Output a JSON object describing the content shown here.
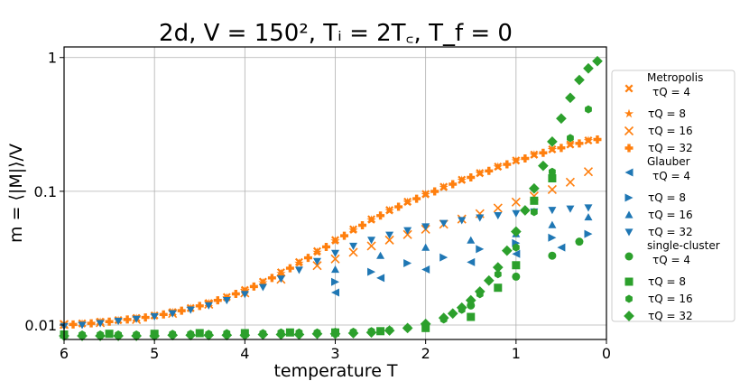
{
  "chart_data": {
    "type": "scatter",
    "title": "2d, V = 150², Tᵢ = 2T꜀, T_f = 0",
    "xlabel": "temperature T",
    "ylabel": "m = ⟨|M|⟩/V",
    "xlim": [
      6,
      0
    ],
    "ylim": [
      0.0078,
      1.2
    ],
    "yscale": "log",
    "xticks": [
      6,
      5,
      4,
      3,
      2,
      1,
      0
    ],
    "yticks": [
      {
        "value": 0.01,
        "label": "0.01"
      },
      {
        "value": 0.1,
        "label": "0.1"
      },
      {
        "value": 1,
        "label": "1"
      }
    ],
    "grid": true,
    "legend_position": "outside-right",
    "groups": [
      {
        "name": "Metropolis",
        "color": "#ff7f0e"
      },
      {
        "name": "Glauber",
        "color": "#1f77b4"
      },
      {
        "name": "single-cluster",
        "color": "#2ca02c"
      }
    ],
    "series": [
      {
        "group": "Metropolis",
        "label": "τQ = 4",
        "marker": "X",
        "color": "#ff7f0e",
        "x": [
          6.0,
          5.8,
          5.6,
          5.4,
          5.2,
          5.0,
          4.8,
          4.6,
          4.4,
          4.2,
          4.0,
          3.8,
          3.6,
          3.4,
          3.2,
          3.0,
          2.8,
          2.6,
          2.4,
          2.2,
          2.0,
          1.8,
          1.6,
          1.4,
          1.2,
          1.0,
          0.8,
          0.6,
          0.4,
          0.2
        ],
        "y": [
          0.0101,
          0.0103,
          0.0106,
          0.0109,
          0.0113,
          0.0118,
          0.0125,
          0.0134,
          0.0146,
          0.0162,
          0.0183,
          0.0211,
          0.0248,
          0.0296,
          0.0357,
          0.0432,
          0.052,
          0.0618,
          0.0724,
          0.0837,
          0.0955,
          0.108,
          0.122,
          0.137,
          0.153,
          0.17,
          0.188,
          0.206,
          0.224,
          0.24
        ]
      },
      {
        "group": "Metropolis",
        "label": "τQ = 8",
        "marker": "*",
        "color": "#ff7f0e",
        "x": [
          6.0,
          5.8,
          5.6,
          5.4,
          5.2,
          5.0,
          4.8,
          4.6,
          4.4,
          4.2,
          4.0,
          3.8,
          3.6,
          3.4,
          3.2,
          3.0,
          2.8,
          2.6,
          2.4,
          2.2,
          2.0,
          1.8,
          1.6,
          1.4,
          1.2,
          1.0,
          0.8,
          0.6,
          0.4,
          0.2
        ],
        "y": [
          0.01,
          0.0102,
          0.0105,
          0.0108,
          0.0112,
          0.0117,
          0.0124,
          0.0133,
          0.0145,
          0.016,
          0.018,
          0.0207,
          0.0243,
          0.029,
          0.035,
          0.0425,
          0.0512,
          0.061,
          0.0716,
          0.0828,
          0.0945,
          0.107,
          0.121,
          0.136,
          0.152,
          0.169,
          0.187,
          0.205,
          0.223,
          0.239
        ]
      },
      {
        "group": "Metropolis",
        "label": "τQ = 16",
        "marker": "x",
        "color": "#ff7f0e",
        "x": [
          6.0,
          5.6,
          5.2,
          4.8,
          4.4,
          4.0,
          3.6,
          3.2,
          3.0,
          2.8,
          2.6,
          2.4,
          2.2,
          2.0,
          1.8,
          1.6,
          1.4,
          1.2,
          1.0,
          0.8,
          0.6,
          0.4,
          0.2
        ],
        "y": [
          0.0101,
          0.0104,
          0.011,
          0.0122,
          0.0143,
          0.0174,
          0.022,
          0.0278,
          0.0312,
          0.035,
          0.039,
          0.0432,
          0.0475,
          0.052,
          0.0568,
          0.062,
          0.068,
          0.075,
          0.083,
          0.092,
          0.103,
          0.117,
          0.14
        ]
      },
      {
        "group": "Metropolis",
        "label": "τQ = 32",
        "marker": "P",
        "color": "#ff7f0e",
        "x": [
          5.9,
          5.7,
          5.5,
          5.3,
          5.1,
          4.9,
          4.7,
          4.5,
          4.3,
          4.1,
          3.9,
          3.7,
          3.5,
          3.3,
          3.1,
          2.9,
          2.7,
          2.5,
          2.3,
          2.1,
          1.9,
          1.7,
          1.5,
          1.3,
          1.1,
          0.9,
          0.7,
          0.5,
          0.3,
          0.1
        ],
        "y": [
          0.0101,
          0.0103,
          0.0106,
          0.011,
          0.0114,
          0.012,
          0.0128,
          0.0139,
          0.0153,
          0.0171,
          0.0194,
          0.0225,
          0.0266,
          0.0318,
          0.0384,
          0.0465,
          0.0557,
          0.0658,
          0.0766,
          0.088,
          0.0998,
          0.113,
          0.127,
          0.142,
          0.159,
          0.176,
          0.194,
          0.211,
          0.228,
          0.244
        ]
      },
      {
        "group": "Glauber",
        "label": "τQ = 4",
        "marker": "<",
        "color": "#1f77b4",
        "x": [
          3.0,
          2.5,
          2.0,
          1.5,
          1.0,
          0.5
        ],
        "y": [
          0.0175,
          0.0225,
          0.026,
          0.0295,
          0.034,
          0.038
        ]
      },
      {
        "group": "Glauber",
        "label": "τQ = 8",
        "marker": ">",
        "color": "#1f77b4",
        "x": [
          3.0,
          2.6,
          2.2,
          1.8,
          1.4,
          1.0,
          0.6,
          0.2
        ],
        "y": [
          0.021,
          0.025,
          0.029,
          0.032,
          0.037,
          0.041,
          0.045,
          0.048
        ]
      },
      {
        "group": "Glauber",
        "label": "τQ = 16",
        "marker": "^",
        "color": "#1f77b4",
        "x": [
          3.0,
          2.5,
          2.0,
          1.5,
          1.0,
          0.6,
          0.2
        ],
        "y": [
          0.026,
          0.033,
          0.038,
          0.043,
          0.048,
          0.056,
          0.064
        ]
      },
      {
        "group": "Glauber",
        "label": "τQ = 32",
        "marker": "v",
        "color": "#1f77b4",
        "x": [
          6.0,
          5.8,
          5.6,
          5.4,
          5.2,
          5.0,
          4.8,
          4.6,
          4.4,
          4.2,
          4.0,
          3.8,
          3.6,
          3.4,
          3.2,
          3.0,
          2.8,
          2.6,
          2.4,
          2.2,
          2.0,
          1.8,
          1.6,
          1.4,
          1.2,
          1.0,
          0.8,
          0.6,
          0.4,
          0.2
        ],
        "y": [
          0.0098,
          0.01,
          0.0103,
          0.0107,
          0.0111,
          0.0116,
          0.0122,
          0.013,
          0.014,
          0.0153,
          0.017,
          0.0192,
          0.0222,
          0.0258,
          0.03,
          0.0345,
          0.039,
          0.0432,
          0.0472,
          0.051,
          0.0545,
          0.0577,
          0.0607,
          0.0635,
          0.066,
          0.0683,
          0.0704,
          0.0723,
          0.074,
          0.0755
        ]
      },
      {
        "group": "single-cluster",
        "label": "τQ = 4",
        "marker": "o",
        "color": "#2ca02c",
        "x": [
          3.0,
          2.0,
          1.5,
          1.0,
          0.6,
          0.3
        ],
        "y": [
          0.0088,
          0.01,
          0.014,
          0.023,
          0.033,
          0.042
        ]
      },
      {
        "group": "single-cluster",
        "label": "τQ = 8",
        "marker": "s",
        "color": "#2ca02c",
        "x": [
          6.0,
          5.5,
          5.0,
          4.5,
          4.0,
          3.5,
          3.0,
          2.5,
          2.0,
          1.5,
          1.2,
          1.0,
          0.8,
          0.6
        ],
        "y": [
          0.0085,
          0.0086,
          0.0086,
          0.0087,
          0.0087,
          0.0088,
          0.0088,
          0.009,
          0.0095,
          0.0115,
          0.019,
          0.028,
          0.085,
          0.125
        ]
      },
      {
        "group": "single-cluster",
        "label": "τQ = 16",
        "marker": "h",
        "color": "#2ca02c",
        "x": [
          6.0,
          5.8,
          5.6,
          5.4,
          5.2,
          5.0,
          4.8,
          4.6,
          4.4,
          4.2,
          4.0,
          3.8,
          3.6,
          3.4,
          3.2,
          3.0,
          2.8,
          2.6,
          2.4,
          2.2,
          2.0,
          1.8,
          1.6,
          1.4,
          1.2,
          1.0,
          0.8,
          0.6,
          0.4,
          0.2
        ],
        "y": [
          0.0085,
          0.0085,
          0.0085,
          0.0085,
          0.0085,
          0.0086,
          0.0086,
          0.0086,
          0.0086,
          0.0087,
          0.0087,
          0.0087,
          0.0088,
          0.0088,
          0.0088,
          0.0089,
          0.0089,
          0.009,
          0.0092,
          0.0095,
          0.01,
          0.011,
          0.013,
          0.017,
          0.024,
          0.038,
          0.07,
          0.14,
          0.25,
          0.41
        ]
      },
      {
        "group": "single-cluster",
        "label": "τQ = 32",
        "marker": "D",
        "color": "#2ca02c",
        "x": [
          6.0,
          5.8,
          5.6,
          5.4,
          5.2,
          5.0,
          4.8,
          4.6,
          4.4,
          4.2,
          4.0,
          3.8,
          3.6,
          3.4,
          3.2,
          3.0,
          2.8,
          2.6,
          2.4,
          2.2,
          2.0,
          1.8,
          1.7,
          1.6,
          1.5,
          1.4,
          1.3,
          1.2,
          1.1,
          1.0,
          0.9,
          0.8,
          0.7,
          0.6,
          0.5,
          0.4,
          0.3,
          0.2,
          0.1
        ],
        "y": [
          0.0083,
          0.0083,
          0.0083,
          0.0083,
          0.0083,
          0.0083,
          0.0084,
          0.0084,
          0.0084,
          0.0084,
          0.0084,
          0.0085,
          0.0085,
          0.0085,
          0.0086,
          0.0086,
          0.0087,
          0.0088,
          0.0091,
          0.0095,
          0.0102,
          0.0113,
          0.0122,
          0.0135,
          0.0153,
          0.0178,
          0.0215,
          0.027,
          0.036,
          0.05,
          0.072,
          0.105,
          0.155,
          0.235,
          0.35,
          0.5,
          0.68,
          0.83,
          0.94
        ]
      }
    ]
  }
}
